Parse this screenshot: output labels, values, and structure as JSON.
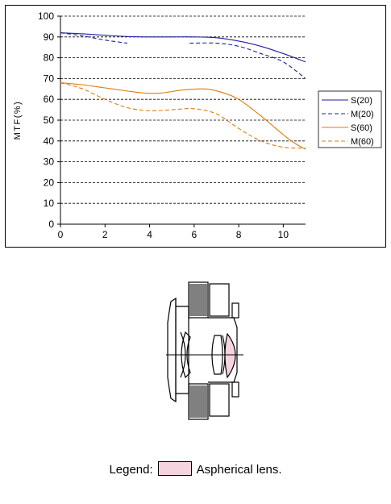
{
  "chart_data": {
    "type": "line",
    "title": "",
    "xlabel": "",
    "ylabel": "MTF(%)",
    "xlim": [
      0,
      11
    ],
    "ylim": [
      0,
      100
    ],
    "xticks": [
      0,
      2,
      4,
      6,
      8,
      10
    ],
    "yticks": [
      0,
      10,
      20,
      30,
      40,
      50,
      60,
      70,
      80,
      90,
      100
    ],
    "grid": "horizontal-dashed",
    "legend_position": "right",
    "series": [
      {
        "name": "S(20)",
        "color": "#1f1fa0",
        "style": "solid",
        "x": [
          0,
          1,
          2,
          3,
          4,
          5,
          6,
          7,
          8,
          9,
          10,
          11
        ],
        "y": [
          92,
          91.5,
          90.8,
          90.2,
          90,
          90,
          90,
          89.6,
          88,
          85.5,
          82,
          78
        ]
      },
      {
        "name": "M(20)",
        "color": "#1f1fa0",
        "style": "dashed",
        "segments": [
          {
            "x": [
              0,
              1,
              2,
              3
            ],
            "y": [
              92,
              90.5,
              88.5,
              87
            ]
          },
          {
            "x": [
              5.8,
              7,
              8,
              9,
              10,
              11
            ],
            "y": [
              87,
              87,
              85.5,
              82,
              78,
              70
            ]
          }
        ]
      },
      {
        "name": "S(60)",
        "color": "#e07a10",
        "style": "solid",
        "x": [
          0,
          1,
          2,
          3,
          3.8,
          4.5,
          5.5,
          6.5,
          7.2,
          8,
          9,
          10,
          10.5,
          11
        ],
        "y": [
          68,
          67,
          65.5,
          64,
          63,
          63,
          64.5,
          65,
          63.5,
          60,
          52,
          43,
          39,
          36
        ]
      },
      {
        "name": "M(60)",
        "color": "#e07a10",
        "style": "dashed",
        "x": [
          0,
          1,
          2,
          3,
          4,
          5,
          6,
          7,
          8,
          9,
          10,
          11
        ],
        "y": [
          68,
          65,
          60,
          56,
          54.5,
          55,
          55.5,
          53,
          46,
          40,
          37,
          36.5
        ]
      }
    ]
  },
  "legend": {
    "prefix": "Legend:",
    "label": "Aspherical lens.",
    "swatch_color": "#f7d3df"
  }
}
